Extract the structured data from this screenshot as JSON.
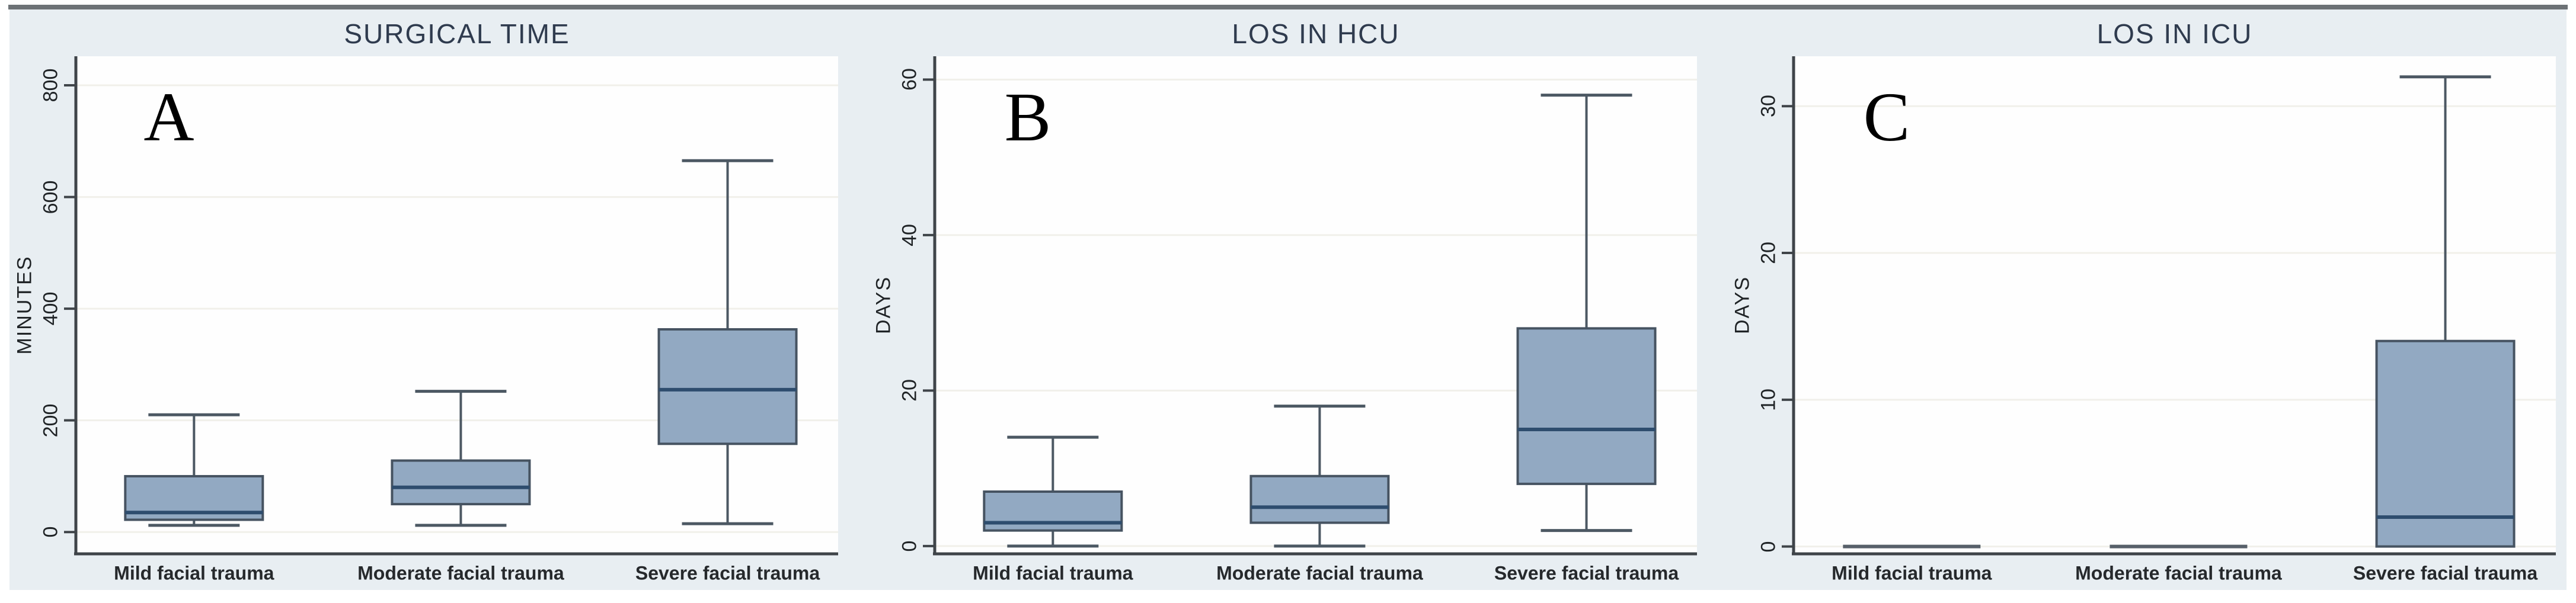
{
  "figure": {
    "kind": "three-panel box plot figure",
    "background_color": "#e8eef2",
    "plot_background": "#fefefe",
    "top_rule_color": "#6d7276"
  },
  "colors": {
    "box_fill": "#92a9c2",
    "box_border": "#465361",
    "median_line": "#2e4d6e",
    "whisker": "#4c5863",
    "zero_group_line": "#57606a",
    "axis": "#3f4449",
    "gridline": "#f1f0ea",
    "title_text": "#2f3b4e",
    "tick_text": "#1f2326",
    "category_text": "#26292c"
  },
  "chart_data": [
    {
      "type": "box",
      "panel_label": "A",
      "title": "SURGICAL TIME",
      "ylabel": "MINUTES",
      "yticks": [
        0,
        200,
        400,
        600,
        800
      ],
      "ylim": [
        -39,
        852
      ],
      "grid": true,
      "legend": "none",
      "categories": [
        "Mild facial trauma",
        "Moderate facial trauma",
        "Severe facial trauma"
      ],
      "boxes": [
        {
          "min": 12,
          "q1": 22,
          "median": 35,
          "q3": 100,
          "max": 210
        },
        {
          "min": 12,
          "q1": 50,
          "median": 80,
          "q3": 128,
          "max": 252
        },
        {
          "min": 15,
          "q1": 158,
          "median": 255,
          "q3": 363,
          "max": 665
        }
      ]
    },
    {
      "type": "box",
      "panel_label": "B",
      "title": "LOS IN HCU",
      "ylabel": "DAYS",
      "yticks": [
        0,
        20,
        40,
        60
      ],
      "ylim": [
        -1,
        63
      ],
      "grid": true,
      "legend": "none",
      "categories": [
        "Mild facial trauma",
        "Moderate facial trauma",
        "Severe facial trauma"
      ],
      "boxes": [
        {
          "min": 0,
          "q1": 2,
          "median": 3,
          "q3": 7,
          "max": 14
        },
        {
          "min": 0,
          "q1": 3,
          "median": 5,
          "q3": 9,
          "max": 18
        },
        {
          "min": 2,
          "q1": 8,
          "median": 15,
          "q3": 28,
          "max": 58
        }
      ]
    },
    {
      "type": "box",
      "panel_label": "C",
      "title": "LOS IN ICU",
      "ylabel": "DAYS",
      "yticks": [
        0,
        10,
        20,
        30
      ],
      "ylim": [
        -0.5,
        33.4
      ],
      "grid": true,
      "legend": "none",
      "categories": [
        "Mild facial trauma",
        "Moderate facial trauma",
        "Severe facial trauma"
      ],
      "boxes": [
        {
          "min": 0,
          "q1": 0,
          "median": 0,
          "q3": 0,
          "max": 0
        },
        {
          "min": 0,
          "q1": 0,
          "median": 0,
          "q3": 0,
          "max": 0
        },
        {
          "min": 0,
          "q1": 0,
          "median": 2,
          "q3": 14,
          "max": 32
        }
      ]
    }
  ]
}
